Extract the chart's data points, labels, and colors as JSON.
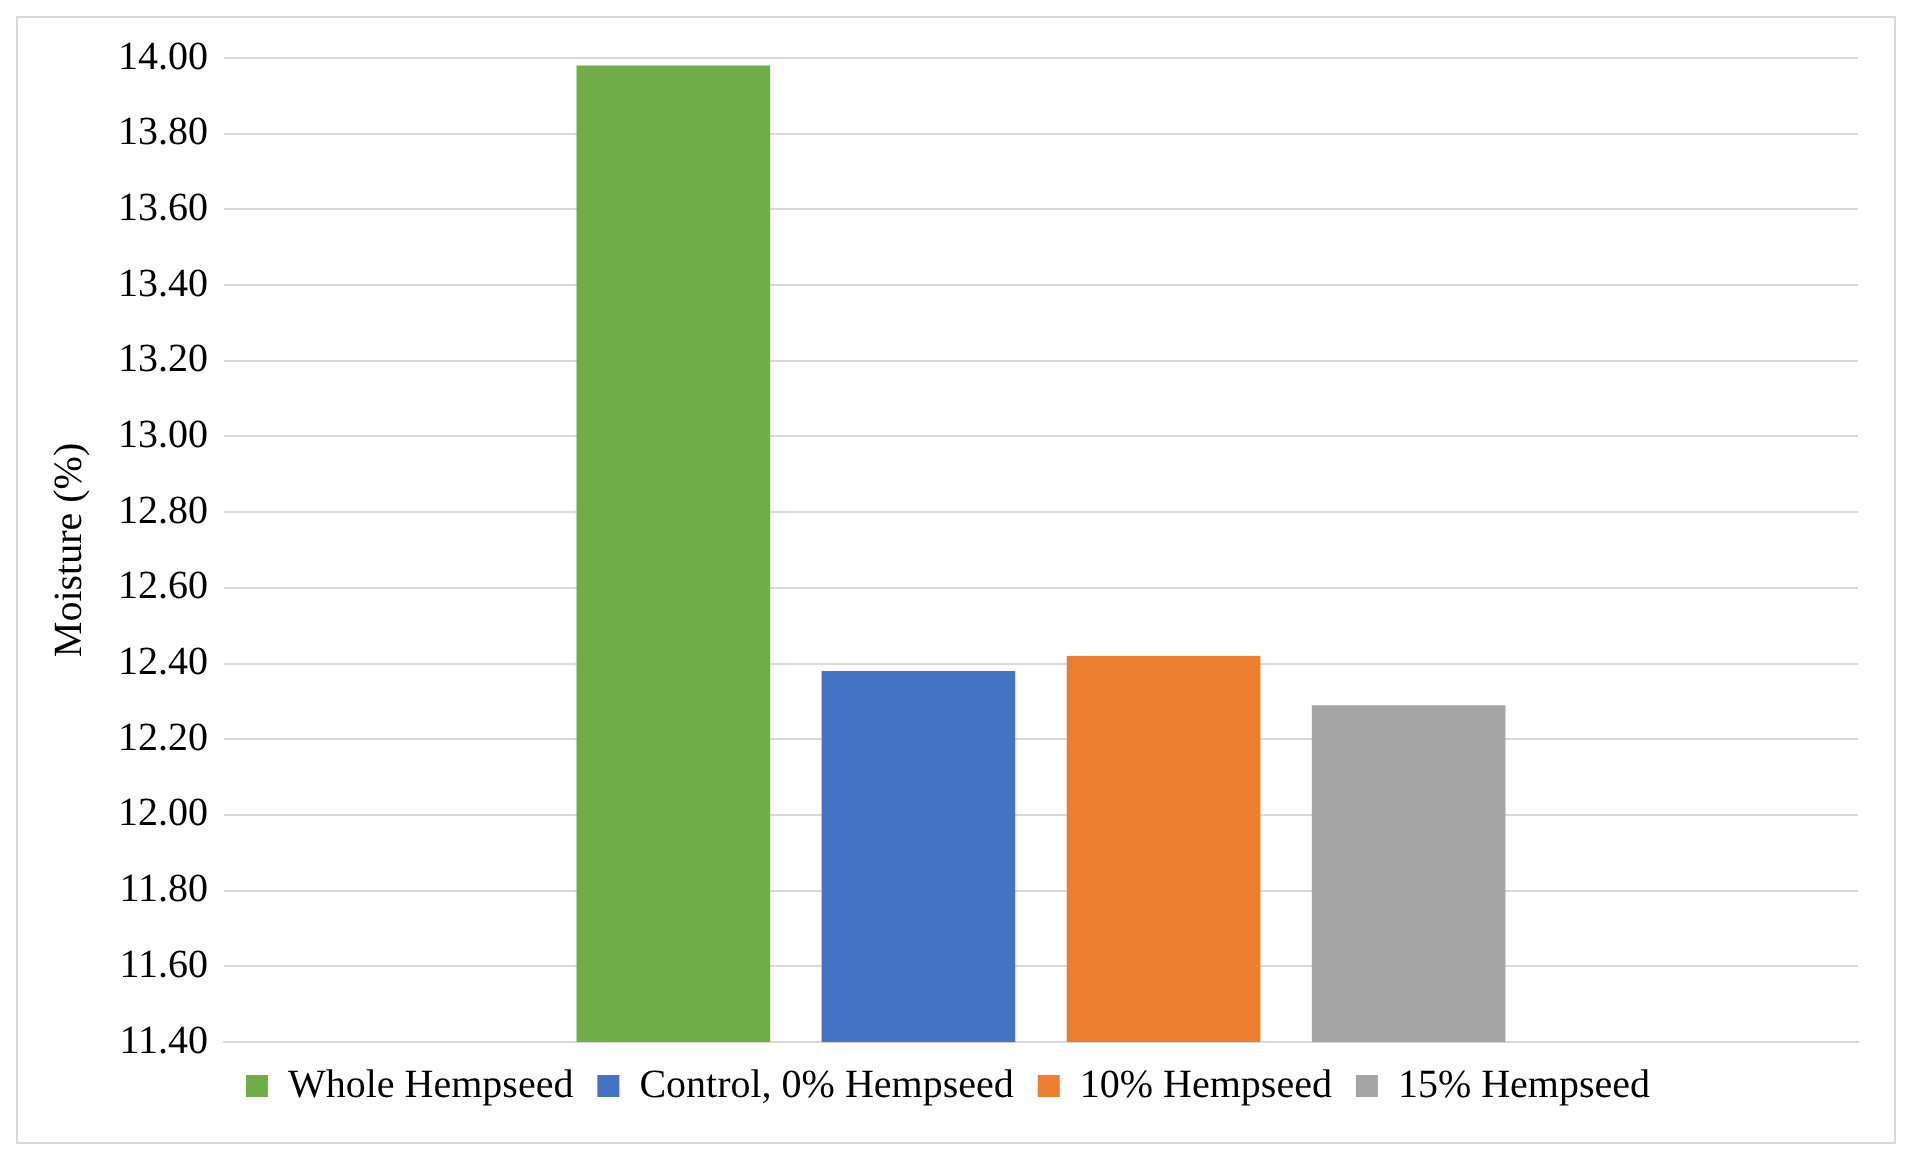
{
  "chart_data": {
    "type": "bar",
    "ylabel": "Moisture (%)",
    "categories": [
      null
    ],
    "series": [
      {
        "name": "Whole Hempseed",
        "color": "#70ad47",
        "values": [
          13.98
        ]
      },
      {
        "name": "Control, 0% Hempseed",
        "color": "#4472c4",
        "values": [
          12.38
        ]
      },
      {
        "name": "10% Hempseed",
        "color": "#ed7d31",
        "values": [
          12.42
        ]
      },
      {
        "name": "15% Hempseed",
        "color": "#a5a5a5",
        "values": [
          12.29
        ]
      }
    ],
    "ylim": [
      11.4,
      14.0
    ],
    "yticks": [
      {
        "value": 11.4,
        "label": "11.40"
      },
      {
        "value": 11.6,
        "label": "11.60"
      },
      {
        "value": 11.8,
        "label": "11.80"
      },
      {
        "value": 12.0,
        "label": "12.00"
      },
      {
        "value": 12.2,
        "label": "12.20"
      },
      {
        "value": 12.4,
        "label": "12.40"
      },
      {
        "value": 12.6,
        "label": "12.60"
      },
      {
        "value": 12.8,
        "label": "12.80"
      },
      {
        "value": 13.0,
        "label": "13.00"
      },
      {
        "value": 13.2,
        "label": "13.20"
      },
      {
        "value": 13.4,
        "label": "13.40"
      },
      {
        "value": 13.6,
        "label": "13.60"
      },
      {
        "value": 13.8,
        "label": "13.80"
      },
      {
        "value": 14.0,
        "label": "14.00"
      }
    ],
    "grid": "y",
    "legend": "bottom",
    "tick_labels": "y"
  }
}
